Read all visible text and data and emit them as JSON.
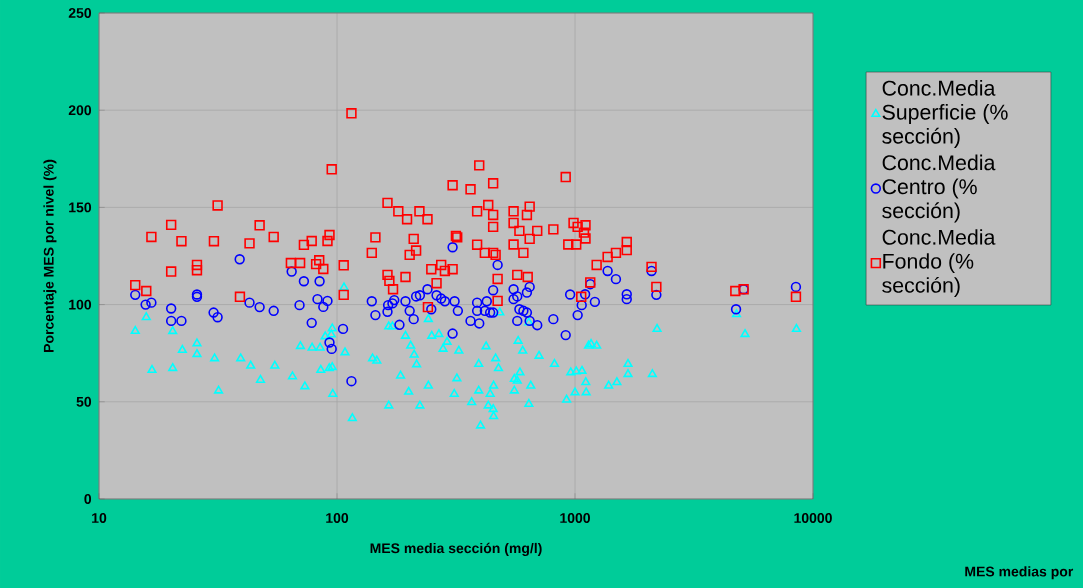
{
  "chart_data": {
    "type": "scatter",
    "xlabel": "MES media sección (mg/l)",
    "ylabel": "Porcentaje MES por nivel (%)",
    "annotations": [
      "MES medias por"
    ],
    "log": "x",
    "xlim": [
      10,
      10000
    ],
    "xticks": [
      10,
      100,
      1000,
      10000
    ],
    "ylim": [
      0,
      250
    ],
    "yticks": [
      0,
      50,
      100,
      150,
      200,
      250
    ],
    "grid": true,
    "legend": "right",
    "series": [
      {
        "name": "Conc.Media Superficie (% sección)",
        "color": "#00ffff",
        "marker": "triangle",
        "x": [
          14.2,
          15.8,
          16.7,
          20.4,
          20.4,
          22.4,
          25.8,
          25.8,
          30.6,
          31.8,
          39.4,
          43.4,
          47.7,
          54.8,
          65,
          70.2,
          73.3,
          78.6,
          84.9,
          85.5,
          89.2,
          92.8,
          94.6,
          95.5,
          95.5,
          96,
          107,
          108,
          116,
          141,
          147,
          165,
          165,
          171,
          185,
          194,
          200,
          204,
          211,
          216,
          223,
          242,
          242,
          250,
          268,
          279,
          290,
          311,
          319,
          325,
          368,
          394,
          394,
          401,
          423,
          432,
          440,
          453,
          455,
          455,
          464,
          477,
          483,
          556,
          556,
          572,
          577,
          587,
          603,
          640,
          640,
          652,
          706,
          820,
          922,
          960,
          1000,
          1012,
          1070,
          1110,
          1114,
          1140,
          1168,
          1233,
          1385,
          1500,
          1670,
          1670,
          2114,
          2212,
          4770,
          5180,
          8520
        ],
        "values": [
          86.4,
          93.5,
          66.3,
          67.3,
          86.3,
          76.6,
          80,
          74.5,
          72.3,
          55.7,
          72.3,
          68.5,
          61.2,
          68.5,
          63,
          78.6,
          57.9,
          77.8,
          77.8,
          66.3,
          83.6,
          67.2,
          84.6,
          87.7,
          67.8,
          54,
          108.8,
          75.4,
          41.5,
          72.3,
          71.1,
          88.7,
          48,
          88.7,
          63.4,
          83.9,
          55.1,
          78.8,
          74.2,
          69.2,
          48,
          92.5,
          58.2,
          83.9,
          84.8,
          77.2,
          80.8,
          54,
          62,
          76.2,
          49.7,
          69.4,
          55.7,
          37.7,
          78.5,
          48,
          54,
          46.2,
          58.2,
          42.5,
          72.3,
          67.2,
          95.9,
          55.7,
          61.7,
          60.8,
          81.3,
          65.1,
          76.2,
          48.8,
          90.8,
          58.2,
          73.6,
          69.4,
          51,
          65.1,
          54.8,
          65.6,
          65.9,
          60,
          54.8,
          78.8,
          79.7,
          78.8,
          58.2,
          60,
          69.4,
          64.2,
          64.2,
          87.4,
          95,
          84.8,
          87.4
        ]
      },
      {
        "name": "Conc.Media Centro (% sección)",
        "color": "#0000ff",
        "marker": "circle",
        "x": [
          14.2,
          15.7,
          16.6,
          20.1,
          20.1,
          22.2,
          25.8,
          25.8,
          30.3,
          31.5,
          39,
          42.9,
          47.3,
          54.2,
          64.5,
          69.6,
          72.6,
          78.3,
          82.8,
          84.5,
          87.6,
          91.2,
          93,
          95,
          106,
          115,
          140,
          145,
          163,
          164,
          171,
          174,
          183,
          194,
          202,
          210,
          215,
          223,
          240,
          249,
          262,
          274,
          284,
          306,
          306,
          312,
          322,
          364,
          388,
          388,
          396,
          418,
          426,
          440,
          453,
          453,
          473,
          552,
          552,
          572,
          572,
          584,
          607,
          628,
          628,
          645,
          645,
          694,
          811,
          914,
          954,
          1026,
          1067,
          1103,
          1159,
          1212,
          1371,
          1486,
          1650,
          1650,
          2097,
          2197,
          4750,
          5111,
          8480
        ],
        "values": [
          105,
          100,
          101,
          98,
          91.6,
          91.6,
          105.2,
          104,
          95.9,
          93.5,
          123.3,
          101,
          98.7,
          96.8,
          117,
          99.7,
          112,
          90.6,
          102.8,
          112,
          98.8,
          101.9,
          80.5,
          77.2,
          87.5,
          60.6,
          101.7,
          94.6,
          96.3,
          99.7,
          100.6,
          102.3,
          89.6,
          101.7,
          96.8,
          92.5,
          104.2,
          104.8,
          107.9,
          97.6,
          104.8,
          103.1,
          101.7,
          85.1,
          129.5,
          101.7,
          96.8,
          91.6,
          101,
          96.8,
          90.3,
          96.8,
          101.7,
          95.9,
          95.9,
          107.4,
          120.4,
          107.9,
          102.8,
          104.2,
          91.6,
          97.6,
          96.8,
          95.9,
          106.2,
          109.1,
          91.6,
          89.4,
          92.5,
          84.3,
          105.2,
          94.6,
          99.7,
          105.3,
          110.5,
          101.4,
          117.3,
          113.1,
          105.3,
          102.8,
          117.3,
          105,
          97.6,
          107.9,
          109.1
        ]
      },
      {
        "name": "Conc.Media Fondo (% sección)",
        "color": "#ff0000",
        "marker": "square",
        "x": [
          14.2,
          15.8,
          16.6,
          20.1,
          20.1,
          22.2,
          25.8,
          25.8,
          30.4,
          31.5,
          39.1,
          42.9,
          47.3,
          54.2,
          64,
          70,
          72.6,
          78.3,
          81.7,
          84.2,
          87.6,
          91.2,
          93,
          95,
          106.7,
          106.7,
          115,
          140,
          145,
          163,
          163,
          166,
          172,
          181,
          194,
          197,
          202,
          210,
          215,
          222,
          240,
          241,
          249,
          262,
          274,
          284,
          306,
          306,
          316,
          320,
          364,
          388,
          388,
          396,
          418,
          432,
          453,
          453,
          453,
          453,
          464,
          473,
          473,
          552,
          552,
          552,
          572,
          584,
          607,
          628,
          633,
          645,
          645,
          694,
          811,
          914,
          937,
          986,
          1012,
          1026,
          1062,
          1091,
          1107,
          1107,
          1159,
          1233,
          1371,
          1486,
          1650,
          1650,
          2097,
          2197,
          4716,
          5111,
          8480
        ],
        "values": [
          110,
          107,
          134.8,
          141,
          117,
          132.6,
          120.4,
          117.7,
          132.6,
          151,
          104,
          131.5,
          140.8,
          134.8,
          121.4,
          121.4,
          130.7,
          132.7,
          120.8,
          122.8,
          118.3,
          132.7,
          135.8,
          169.6,
          120.2,
          105,
          198.4,
          126.6,
          134.6,
          152.3,
          115.3,
          112.2,
          107.9,
          148,
          114.2,
          143.9,
          125.6,
          133.8,
          127.8,
          148,
          143.9,
          98.7,
          118.2,
          111,
          120.4,
          117.3,
          118.2,
          161.4,
          135.3,
          134.6,
          159.3,
          148,
          130.8,
          171.6,
          126.6,
          151.2,
          162.4,
          146.1,
          140,
          126.6,
          125.6,
          113.2,
          101.9,
          148,
          142,
          130.9,
          115.3,
          137.9,
          126.6,
          146.1,
          114.2,
          150.4,
          133.8,
          137.9,
          138.7,
          165.6,
          130.9,
          142,
          130.9,
          140,
          104,
          137,
          140.8,
          134,
          111.4,
          120.4,
          124.5,
          126.6,
          132.2,
          128,
          119.4,
          109.1,
          107,
          107.9,
          104
        ]
      }
    ]
  }
}
